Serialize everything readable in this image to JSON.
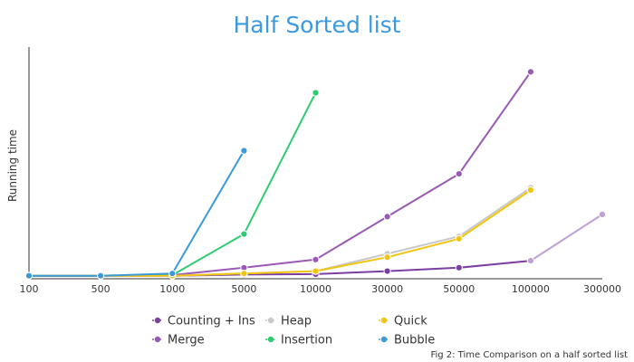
{
  "chart_data": {
    "type": "line",
    "title": "Half Sorted list",
    "xlabel": "",
    "ylabel": "Running time",
    "categories": [
      "100",
      "500",
      "1000",
      "5000",
      "10000",
      "30000",
      "50000",
      "100000",
      "300000"
    ],
    "ylim": [
      0,
      100
    ],
    "grid": false,
    "legend_position": "bottom",
    "caption": "Fig 2: Time Comparison on a half sorted list",
    "series": [
      {
        "name": "Counting + Ins",
        "color": "#7b3fa2",
        "values": [
          0.5,
          0.5,
          0.5,
          1,
          1.2,
          2.5,
          4,
          7,
          null
        ]
      },
      {
        "name": "Merge",
        "color": "#9b59b6",
        "values": [
          0.5,
          0.5,
          0.8,
          4,
          7.5,
          26,
          44.5,
          88.5,
          null
        ]
      },
      {
        "name": "Heap",
        "color": "#c8c8c8",
        "values": [
          0.5,
          0.5,
          0.5,
          1.5,
          2.5,
          10,
          17.5,
          38.5,
          null
        ]
      },
      {
        "name": "Insertion",
        "color": "#2ecc71",
        "values": [
          0.5,
          0.5,
          0.8,
          18.5,
          79.5,
          null,
          null,
          null,
          null
        ]
      },
      {
        "name": "Quick",
        "color": "#f1c40f",
        "values": [
          0.5,
          0.5,
          0.5,
          1.5,
          2.5,
          8.5,
          16.5,
          37.5,
          null
        ]
      },
      {
        "name": "Bubble",
        "color": "#3a9ad9",
        "values": [
          0.5,
          0.5,
          1.5,
          54.5,
          null,
          null,
          null,
          null,
          null
        ]
      },
      {
        "name": "",
        "color": "#bfa0d6",
        "values": [
          null,
          null,
          null,
          null,
          null,
          null,
          null,
          7,
          27
        ]
      }
    ]
  }
}
